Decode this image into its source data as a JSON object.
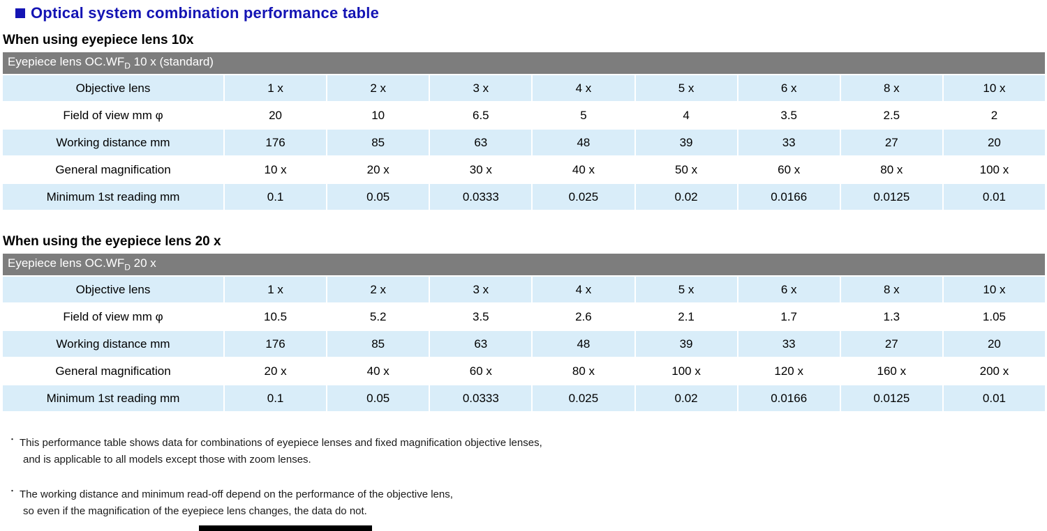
{
  "title": "Optical system combination performance table",
  "colors": {
    "accent": "#1414b4",
    "bar_background": "#7d7d7d",
    "row_highlight": "#d9edf9"
  },
  "sections": [
    {
      "heading": "When using eyepiece lens 10x",
      "table_title": {
        "prefix": "Eyepiece lens OC.WF",
        "sub": "D",
        "suffix": " 10 x (standard)"
      },
      "rows": [
        {
          "label": "Objective lens",
          "values": [
            "1 x",
            "2 x",
            "3 x",
            "4 x",
            "5 x",
            "6 x",
            "8 x",
            "10 x"
          ]
        },
        {
          "label": "Field of view mm φ",
          "values": [
            "20",
            "10",
            "6.5",
            "5",
            "4",
            "3.5",
            "2.5",
            "2"
          ]
        },
        {
          "label": "Working distance mm",
          "values": [
            "176",
            "85",
            "63",
            "48",
            "39",
            "33",
            "27",
            "20"
          ]
        },
        {
          "label": "General magnification",
          "values": [
            "10 x",
            "20 x",
            "30 x",
            "40 x",
            "50 x",
            "60 x",
            "80 x",
            "100 x"
          ]
        },
        {
          "label": "Minimum 1st reading mm",
          "values": [
            "0.1",
            "0.05",
            "0.0333",
            "0.025",
            "0.02",
            "0.0166",
            "0.0125",
            "0.01"
          ]
        }
      ]
    },
    {
      "heading": "When using the eyepiece lens 20 x",
      "table_title": {
        "prefix": "Eyepiece lens OC.WF",
        "sub": "D",
        "suffix": " 20 x"
      },
      "rows": [
        {
          "label": "Objective lens",
          "values": [
            "1 x",
            "2 x",
            "3 x",
            "4 x",
            "5 x",
            "6 x",
            "8 x",
            "10 x"
          ]
        },
        {
          "label": "Field of view mm φ",
          "values": [
            "10.5",
            "5.2",
            "3.5",
            "2.6",
            "2.1",
            "1.7",
            "1.3",
            "1.05"
          ]
        },
        {
          "label": "Working distance mm",
          "values": [
            "176",
            "85",
            "63",
            "48",
            "39",
            "33",
            "27",
            "20"
          ]
        },
        {
          "label": "General magnification",
          "values": [
            "20 x",
            "40 x",
            "60 x",
            "80 x",
            "100 x",
            "120 x",
            "160 x",
            "200 x"
          ]
        },
        {
          "label": "Minimum 1st reading mm",
          "values": [
            "0.1",
            "0.05",
            "0.0333",
            "0.025",
            "0.02",
            "0.0166",
            "0.0125",
            "0.01"
          ]
        }
      ]
    }
  ],
  "footnotes": [
    {
      "marker": "・",
      "lines": [
        "This performance table shows data for combinations of eyepiece lenses and fixed magnification objective lenses,",
        "and is applicable to all models except those with zoom lenses."
      ]
    },
    {
      "marker": "・",
      "lines": [
        "The working distance and minimum read-off depend on the performance of the objective lens,",
        "so even if the magnification of the eyepiece lens changes, the data do not."
      ]
    }
  ]
}
